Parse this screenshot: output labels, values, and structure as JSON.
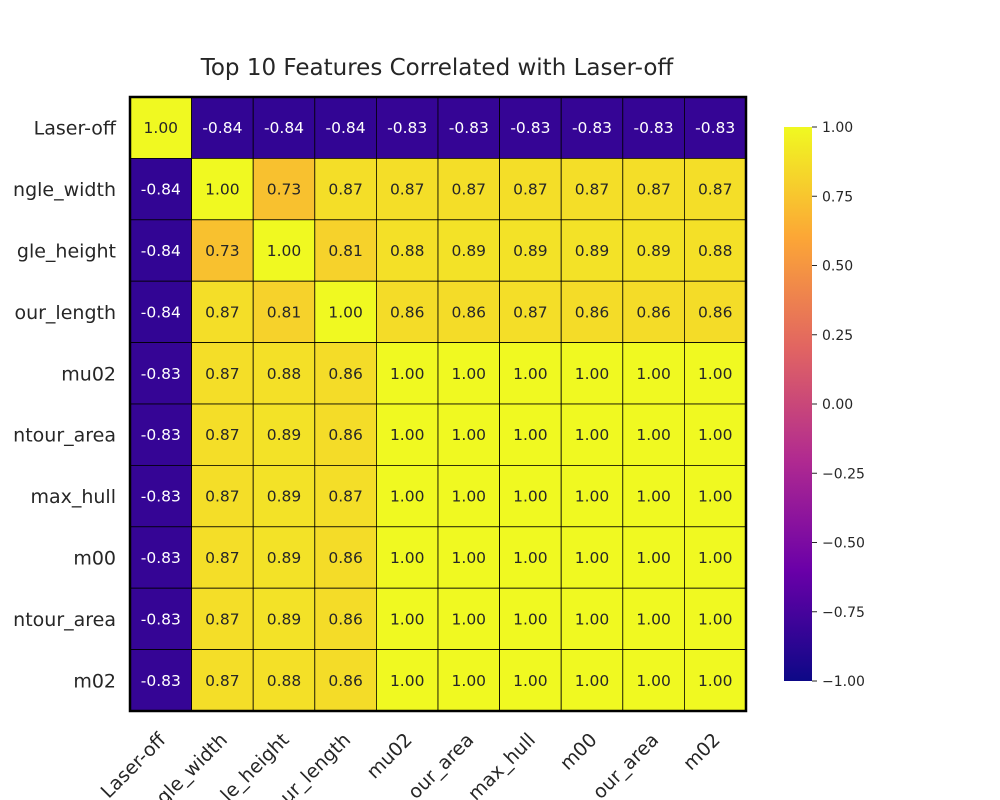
{
  "chart_data": {
    "type": "heatmap",
    "title": "Top 10 Features Correlated with Laser-off",
    "features": [
      "Laser-off",
      "rectangle_width",
      "rectangle_height",
      "contour_length",
      "mu02",
      "contour_area",
      "max_hull",
      "m00",
      "convex_contour_area",
      "m02"
    ],
    "row_tick_labels": [
      "Laser-off",
      "ngle_width",
      "gle_height",
      "our_length",
      "mu02",
      "ntour_area",
      "max_hull",
      "m00",
      "ntour_area",
      "m02"
    ],
    "col_tick_labels": [
      "Laser-off",
      "gle_width",
      "le_height",
      "ur_length",
      "mu02",
      "our_area",
      "max_hull",
      "m00",
      "our_area",
      "m02"
    ],
    "matrix": [
      [
        1.0,
        -0.84,
        -0.84,
        -0.84,
        -0.83,
        -0.83,
        -0.83,
        -0.83,
        -0.83,
        -0.83
      ],
      [
        -0.84,
        1.0,
        0.73,
        0.87,
        0.87,
        0.87,
        0.87,
        0.87,
        0.87,
        0.87
      ],
      [
        -0.84,
        0.73,
        1.0,
        0.81,
        0.88,
        0.89,
        0.89,
        0.89,
        0.89,
        0.88
      ],
      [
        -0.84,
        0.87,
        0.81,
        1.0,
        0.86,
        0.86,
        0.87,
        0.86,
        0.86,
        0.86
      ],
      [
        -0.83,
        0.87,
        0.88,
        0.86,
        1.0,
        1.0,
        1.0,
        1.0,
        1.0,
        1.0
      ],
      [
        -0.83,
        0.87,
        0.89,
        0.86,
        1.0,
        1.0,
        1.0,
        1.0,
        1.0,
        1.0
      ],
      [
        -0.83,
        0.87,
        0.89,
        0.87,
        1.0,
        1.0,
        1.0,
        1.0,
        1.0,
        1.0
      ],
      [
        -0.83,
        0.87,
        0.89,
        0.86,
        1.0,
        1.0,
        1.0,
        1.0,
        1.0,
        1.0
      ],
      [
        -0.83,
        0.87,
        0.89,
        0.86,
        1.0,
        1.0,
        1.0,
        1.0,
        1.0,
        1.0
      ],
      [
        -0.83,
        0.87,
        0.88,
        0.86,
        1.0,
        1.0,
        1.0,
        1.0,
        1.0,
        1.0
      ]
    ],
    "value_format": "2 decimals",
    "colormap": "plasma",
    "colormap_stops": [
      "#0d0887",
      "#6a00a8",
      "#b12a90",
      "#e16462",
      "#fca636",
      "#f0f921"
    ],
    "vmin": -1.0,
    "vmax": 1.0,
    "colorbar_ticks": [
      1.0,
      0.75,
      0.5,
      0.25,
      0.0,
      -0.25,
      -0.5,
      -0.75,
      -1.0
    ],
    "colorbar_tick_labels": [
      "1.00",
      "0.75",
      "0.50",
      "0.25",
      "0.00",
      "−0.25",
      "−0.50",
      "−0.75",
      "−1.00"
    ],
    "grid": true,
    "legend": "colorbar-right"
  }
}
